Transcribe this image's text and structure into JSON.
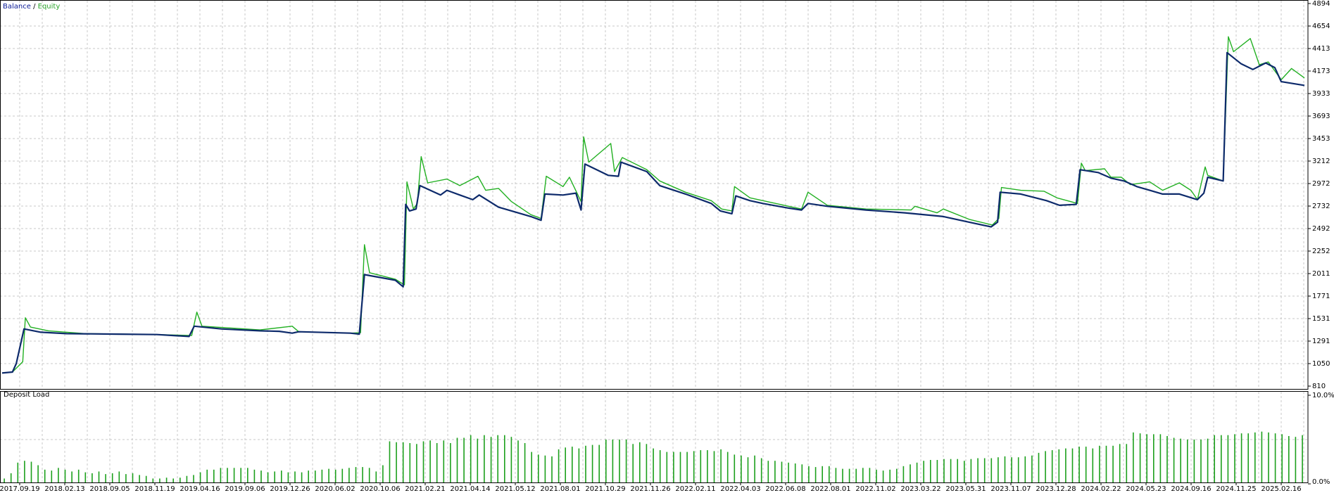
{
  "legend": {
    "balance_label": "Balance",
    "separator": " / ",
    "equity_label": "Equity"
  },
  "colors": {
    "balance": "#0d2a6b",
    "equity": "#22b022",
    "deposit_load": "#1ca01c",
    "grid": "#c8c8c8",
    "axis": "#000000"
  },
  "chart_data": [
    {
      "type": "line",
      "y_ticks": [
        "4894",
        "4654",
        "4413",
        "4173",
        "3933",
        "3693",
        "3453",
        "3212",
        "2972",
        "2732",
        "2492",
        "2252",
        "2011",
        "1771",
        "1531",
        "1291",
        "1050",
        "810"
      ],
      "ylim": [
        810,
        4894
      ],
      "grid": true,
      "series": [
        {
          "name": "Balance",
          "points": [
            [
              0,
              950
            ],
            [
              0.8,
              960
            ],
            [
              1.1,
              1050
            ],
            [
              1.7,
              1420
            ],
            [
              3,
              1385
            ],
            [
              5,
              1370
            ],
            [
              9,
              1365
            ],
            [
              12,
              1360
            ],
            [
              14.5,
              1340
            ],
            [
              14.9,
              1450
            ],
            [
              17,
              1420
            ],
            [
              20,
              1400
            ],
            [
              21.5,
              1395
            ],
            [
              22.5,
              1375
            ],
            [
              23,
              1390
            ],
            [
              27,
              1375
            ],
            [
              27.7,
              1365
            ],
            [
              28.1,
              2000
            ],
            [
              30.5,
              1940
            ],
            [
              31.1,
              1870
            ],
            [
              31.3,
              2750
            ],
            [
              31.6,
              2680
            ],
            [
              32.1,
              2700
            ],
            [
              32.4,
              2950
            ],
            [
              34,
              2850
            ],
            [
              34.5,
              2900
            ],
            [
              35.5,
              2850
            ],
            [
              36.5,
              2800
            ],
            [
              37,
              2850
            ],
            [
              38.5,
              2720
            ],
            [
              40,
              2660
            ],
            [
              41,
              2620
            ],
            [
              41.8,
              2580
            ],
            [
              42.1,
              2860
            ],
            [
              43.5,
              2850
            ],
            [
              44.5,
              2870
            ],
            [
              44.9,
              2690
            ],
            [
              45.2,
              3180
            ],
            [
              47,
              3060
            ],
            [
              47.8,
              3050
            ],
            [
              48,
              3200
            ],
            [
              50,
              3100
            ],
            [
              51,
              2950
            ],
            [
              53,
              2860
            ],
            [
              55,
              2760
            ],
            [
              55.7,
              2680
            ],
            [
              56.6,
              2650
            ],
            [
              56.9,
              2840
            ],
            [
              58,
              2790
            ],
            [
              59,
              2760
            ],
            [
              61,
              2710
            ],
            [
              62,
              2690
            ],
            [
              62.5,
              2760
            ],
            [
              64,
              2730
            ],
            [
              67,
              2690
            ],
            [
              70,
              2660
            ],
            [
              73,
              2620
            ],
            [
              75,
              2560
            ],
            [
              76.7,
              2510
            ],
            [
              77.2,
              2560
            ],
            [
              77.4,
              2880
            ],
            [
              79,
              2860
            ],
            [
              81,
              2790
            ],
            [
              82,
              2740
            ],
            [
              83.3,
              2750
            ],
            [
              83.6,
              3120
            ],
            [
              85,
              3090
            ],
            [
              86,
              3030
            ],
            [
              87,
              3000
            ],
            [
              88,
              2940
            ],
            [
              89,
              2900
            ],
            [
              90,
              2860
            ],
            [
              91.3,
              2860
            ],
            [
              92.7,
              2800
            ],
            [
              93.2,
              2870
            ],
            [
              93.5,
              3040
            ],
            [
              94.7,
              3000
            ],
            [
              95,
              4370
            ],
            [
              96.1,
              4250
            ],
            [
              97,
              4190
            ],
            [
              98,
              4260
            ],
            [
              98.7,
              4210
            ],
            [
              99.2,
              4060
            ],
            [
              101,
              4020
            ]
          ]
        },
        {
          "name": "Equity",
          "points": [
            [
              0,
              950
            ],
            [
              0.8,
              960
            ],
            [
              1.6,
              1070
            ],
            [
              1.8,
              1540
            ],
            [
              2.2,
              1440
            ],
            [
              3.6,
              1400
            ],
            [
              6.5,
              1370
            ],
            [
              9.5,
              1365
            ],
            [
              12,
              1360
            ],
            [
              14.7,
              1350
            ],
            [
              15.1,
              1600
            ],
            [
              15.5,
              1450
            ],
            [
              20,
              1410
            ],
            [
              22.5,
              1450
            ],
            [
              23,
              1390
            ],
            [
              27,
              1375
            ],
            [
              27.8,
              1380
            ],
            [
              28.1,
              2320
            ],
            [
              28.5,
              2020
            ],
            [
              30.5,
              1950
            ],
            [
              31.2,
              1890
            ],
            [
              31.4,
              2990
            ],
            [
              31.9,
              2700
            ],
            [
              32.2,
              2760
            ],
            [
              32.5,
              3260
            ],
            [
              33,
              2980
            ],
            [
              34.5,
              3020
            ],
            [
              35.5,
              2950
            ],
            [
              36.9,
              3050
            ],
            [
              37.5,
              2900
            ],
            [
              38.5,
              2920
            ],
            [
              39.5,
              2780
            ],
            [
              41,
              2640
            ],
            [
              41.8,
              2600
            ],
            [
              42.2,
              3050
            ],
            [
              43.5,
              2940
            ],
            [
              44,
              3040
            ],
            [
              44.9,
              2780
            ],
            [
              45.1,
              3470
            ],
            [
              45.5,
              3200
            ],
            [
              47.2,
              3400
            ],
            [
              47.5,
              3100
            ],
            [
              48.1,
              3250
            ],
            [
              50,
              3120
            ],
            [
              51,
              3000
            ],
            [
              53,
              2880
            ],
            [
              55,
              2790
            ],
            [
              55.8,
              2700
            ],
            [
              56.6,
              2680
            ],
            [
              56.8,
              2940
            ],
            [
              58,
              2820
            ],
            [
              59,
              2790
            ],
            [
              61,
              2730
            ],
            [
              62,
              2700
            ],
            [
              62.5,
              2880
            ],
            [
              64,
              2740
            ],
            [
              67,
              2700
            ],
            [
              70.5,
              2690
            ],
            [
              70.8,
              2730
            ],
            [
              72.5,
              2660
            ],
            [
              73,
              2700
            ],
            [
              75,
              2590
            ],
            [
              76.8,
              2530
            ],
            [
              77.3,
              2600
            ],
            [
              77.5,
              2930
            ],
            [
              79,
              2900
            ],
            [
              80.8,
              2890
            ],
            [
              81.8,
              2820
            ],
            [
              83.4,
              2760
            ],
            [
              83.7,
              3190
            ],
            [
              84,
              3110
            ],
            [
              85.5,
              3130
            ],
            [
              86,
              3040
            ],
            [
              86.8,
              3040
            ],
            [
              87.5,
              2960
            ],
            [
              89,
              2990
            ],
            [
              90,
              2900
            ],
            [
              91.3,
              2980
            ],
            [
              92.2,
              2900
            ],
            [
              92.7,
              2800
            ],
            [
              93.3,
              3150
            ],
            [
              93.5,
              3060
            ],
            [
              94.7,
              3000
            ],
            [
              95.1,
              4540
            ],
            [
              95.5,
              4380
            ],
            [
              96.8,
              4520
            ],
            [
              97.5,
              4240
            ],
            [
              98.2,
              4270
            ],
            [
              99.2,
              4080
            ],
            [
              100,
              4200
            ],
            [
              101,
              4100
            ]
          ]
        }
      ]
    },
    {
      "type": "bar",
      "title": "Deposit Load",
      "y_ticks": [
        "10.0%",
        "0.0%"
      ],
      "ylim": [
        0,
        10
      ],
      "x_tick_labels": [
        "2017.09.19",
        "2018.02.13",
        "2018.09.05",
        "2018.11.19",
        "2019.04.16",
        "2019.09.06",
        "2019.12.26",
        "2020.06.02",
        "2020.10.06",
        "2021.02.21",
        "2021.04.14",
        "2021.05.12",
        "2021.08.01",
        "2021.10.29",
        "2021.11.26",
        "2022.02.11",
        "2022.04.03",
        "2022.06.08",
        "2022.08.01",
        "2022.11.02",
        "2023.03.22",
        "2023.05.31",
        "2023.11.07",
        "2023.12.28",
        "2024.02.22",
        "2024.05.23",
        "2024.09.16",
        "2024.11.25",
        "2025.02.16"
      ],
      "values": [
        0.6,
        1.2,
        2.4,
        2.6,
        2.5,
        2.1,
        1.6,
        1.5,
        1.8,
        1.6,
        1.4,
        1.6,
        1.3,
        1.2,
        1.4,
        1.1,
        1.2,
        1.4,
        1.1,
        1.2,
        1.0,
        0.9,
        0.6,
        0.6,
        0.7,
        0.6,
        0.7,
        0.9,
        1.0,
        1.3,
        1.6,
        1.6,
        1.8,
        1.8,
        1.8,
        1.8,
        1.8,
        1.6,
        1.5,
        1.3,
        1.4,
        1.5,
        1.3,
        1.4,
        1.3,
        1.5,
        1.5,
        1.6,
        1.7,
        1.6,
        1.7,
        1.8,
        1.9,
        1.9,
        1.8,
        1.4,
        2.1,
        4.8,
        4.7,
        4.7,
        4.6,
        4.5,
        4.8,
        4.9,
        4.6,
        4.9,
        4.6,
        5.2,
        5.2,
        5.5,
        5.1,
        5.5,
        5.3,
        5.5,
        5.5,
        5.3,
        4.9,
        4.6,
        3.6,
        3.3,
        3.2,
        3.1,
        3.9,
        4.1,
        4.2,
        4.0,
        4.3,
        4.4,
        4.4,
        5.0,
        5.0,
        5.0,
        5.0,
        4.5,
        4.7,
        4.5,
        4.0,
        3.8,
        3.6,
        3.6,
        3.6,
        3.6,
        3.7,
        3.8,
        3.8,
        3.7,
        3.9,
        3.6,
        3.3,
        3.2,
        3.0,
        3.2,
        2.9,
        2.6,
        2.6,
        2.5,
        2.4,
        2.3,
        2.2,
        2.0,
        1.9,
        2.0,
        2.0,
        1.8,
        1.7,
        1.7,
        1.7,
        1.8,
        1.8,
        1.6,
        1.5,
        1.6,
        1.7,
        2.0,
        2.2,
        2.4,
        2.6,
        2.7,
        2.7,
        2.8,
        2.8,
        2.8,
        2.6,
        2.8,
        2.9,
        2.9,
        2.9,
        3.0,
        3.1,
        3.0,
        3.0,
        3.1,
        3.2,
        3.5,
        3.7,
        3.8,
        3.9,
        4.0,
        4.0,
        4.2,
        4.2,
        4.0,
        4.3,
        4.3,
        4.3,
        4.5,
        4.5,
        5.8,
        5.7,
        5.6,
        5.6,
        5.6,
        5.4,
        5.2,
        5.1,
        5.0,
        5.0,
        5.0,
        5.1,
        5.5,
        5.5,
        5.5,
        5.6,
        5.7,
        5.7,
        5.8,
        5.9,
        5.8,
        5.7,
        5.6,
        5.4,
        5.3,
        5.5
      ]
    }
  ]
}
